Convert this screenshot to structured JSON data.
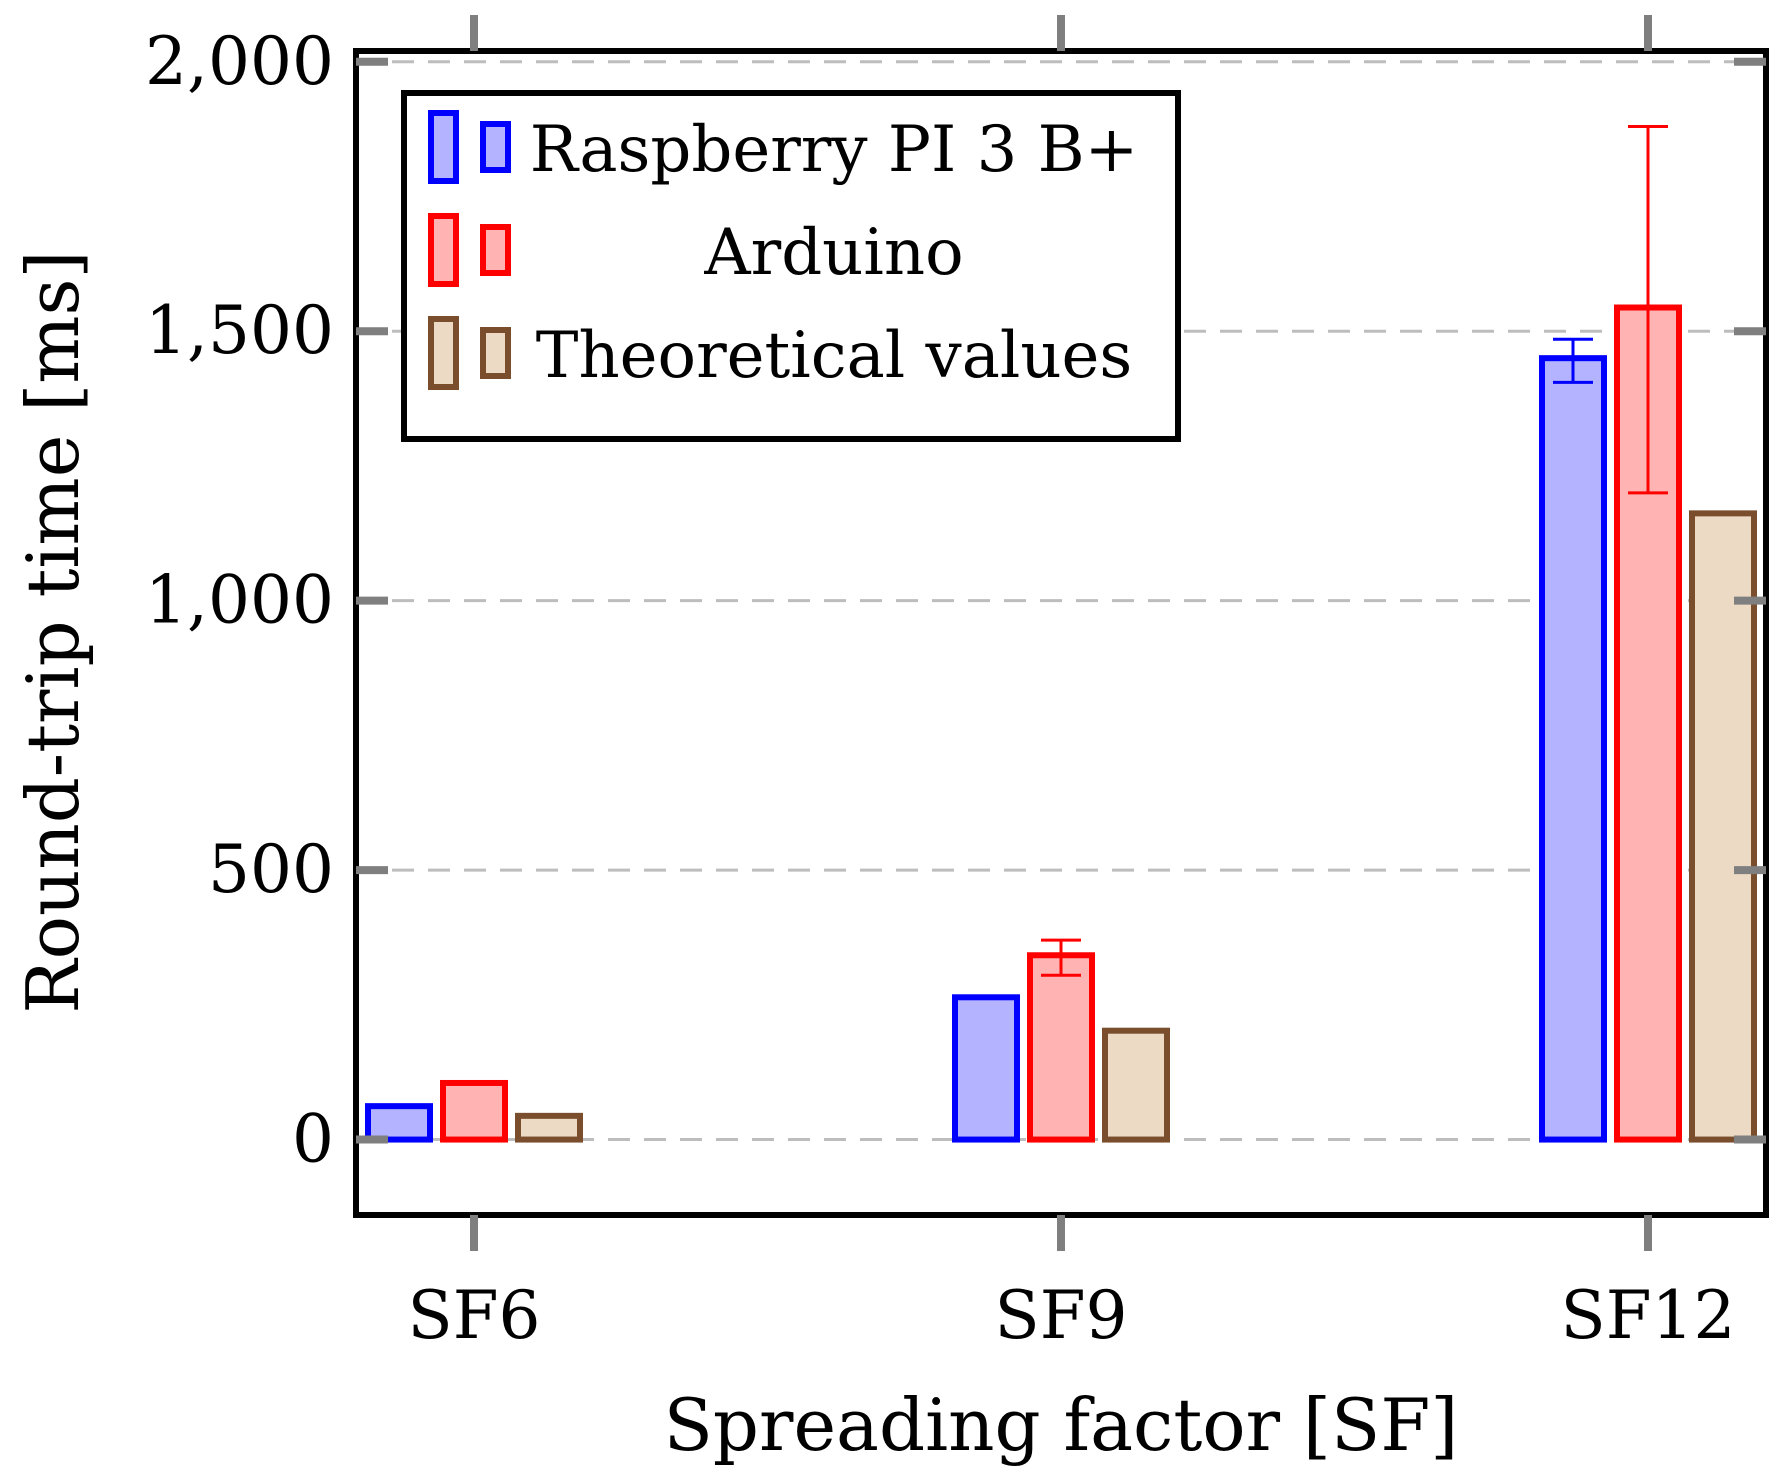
{
  "chart_data": {
    "type": "bar",
    "title": "",
    "xlabel": "Spreading factor [SF]",
    "ylabel": "Round-trip time [ms]",
    "categories": [
      "SF6",
      "SF9",
      "SF12"
    ],
    "ylim": [
      -140,
      2020
    ],
    "yticks": [
      0,
      500,
      1000,
      1500,
      2000
    ],
    "ytick_labels": [
      "0",
      "500",
      "1,000",
      "1,500",
      "2,000"
    ],
    "grid": "horizontal-dashed",
    "legend_position": "top-left",
    "series": [
      {
        "name": "Raspberry PI 3 B+",
        "stroke": "#0000ff",
        "fill": "#b3b3ff",
        "values": [
          62,
          264,
          1450
        ],
        "error": [
          null,
          null,
          [
            1405,
            1485
          ]
        ]
      },
      {
        "name": "Arduino",
        "stroke": "#ff0000",
        "fill": "#ffb3b3",
        "values": [
          105,
          342,
          1544
        ],
        "error": [
          null,
          [
            305,
            370
          ],
          [
            1200,
            1880
          ]
        ]
      },
      {
        "name": "Theoretical values",
        "stroke": "#7a4e2d",
        "fill": "#ecdac5",
        "values": [
          44,
          202,
          1162
        ],
        "error": [
          null,
          null,
          null
        ]
      }
    ]
  }
}
